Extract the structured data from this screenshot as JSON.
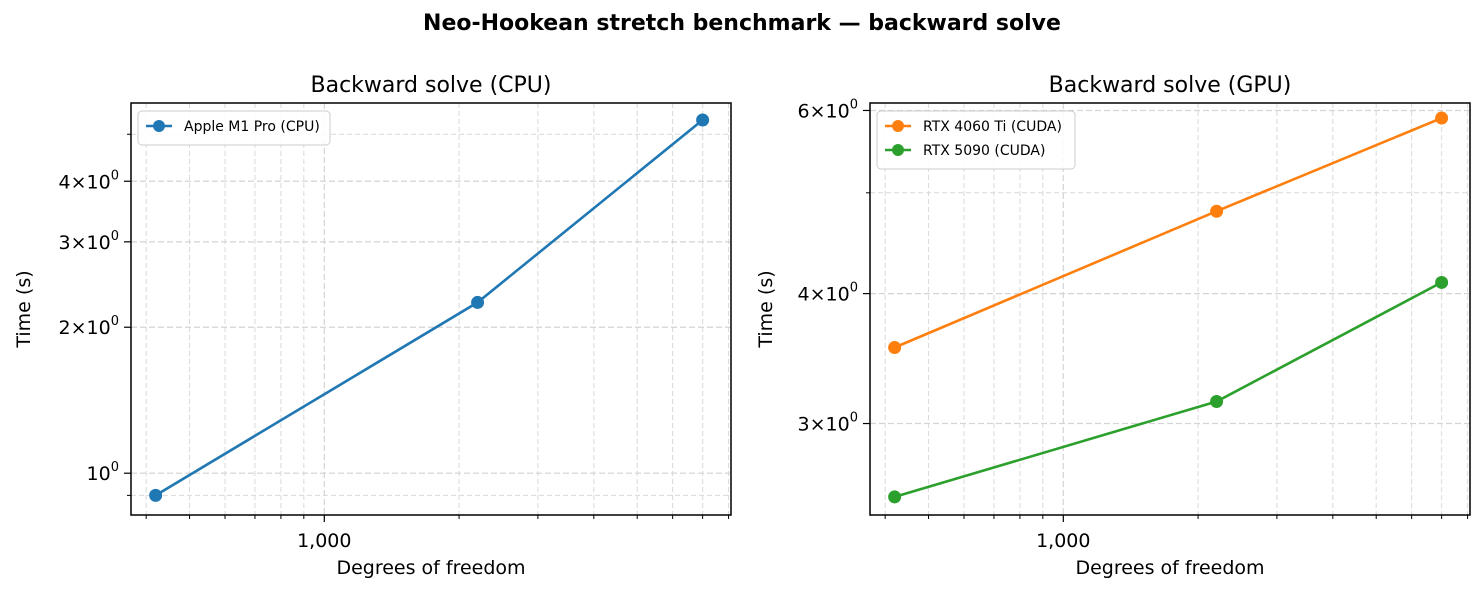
{
  "figure": {
    "title": "Neo-Hookean stretch benchmark — backward solve"
  },
  "chart_data": [
    {
      "type": "line",
      "title": "Backward solve (CPU)",
      "xlabel": "Degrees of freedom",
      "ylabel": "Time (s)",
      "xscale": "log",
      "yscale": "log",
      "grid": true,
      "legend_position": "top-left",
      "x_ticks": [
        {
          "value": 1000,
          "label": "1,000"
        }
      ],
      "y_ticks": [
        {
          "value": 1,
          "base": "10",
          "exp": "0"
        },
        {
          "value": 2,
          "base": "2×10",
          "exp": "0"
        },
        {
          "value": 3,
          "base": "3×10",
          "exp": "0"
        },
        {
          "value": 4,
          "base": "4×10",
          "exp": "0"
        }
      ],
      "xlim": [
        370,
        8100
      ],
      "ylim": [
        0.82,
        5.8
      ],
      "series": [
        {
          "name": "Apple M1 Pro (CPU)",
          "color": "#1f77b4",
          "x": [
            420,
            2200,
            7000
          ],
          "y": [
            0.9,
            2.25,
            5.35
          ]
        }
      ]
    },
    {
      "type": "line",
      "title": "Backward solve (GPU)",
      "xlabel": "Degrees of freedom",
      "ylabel": "Time (s)",
      "xscale": "log",
      "yscale": "log",
      "grid": true,
      "legend_position": "top-left",
      "x_ticks": [
        {
          "value": 1000,
          "label": "1,000"
        }
      ],
      "y_ticks": [
        {
          "value": 3,
          "base": "3×10",
          "exp": "0"
        },
        {
          "value": 4,
          "base": "4×10",
          "exp": "0"
        },
        {
          "value": 6,
          "base": "6×10",
          "exp": "0"
        }
      ],
      "xlim": [
        370,
        8100
      ],
      "ylim": [
        2.45,
        6.1
      ],
      "series": [
        {
          "name": "RTX 4060 Ti (CUDA)",
          "color": "#ff7f0e",
          "x": [
            420,
            2200,
            7000
          ],
          "y": [
            3.55,
            4.8,
            5.9
          ]
        },
        {
          "name": "RTX 5090 (CUDA)",
          "color": "#2ca02c",
          "x": [
            420,
            2200,
            7000
          ],
          "y": [
            2.55,
            3.15,
            4.1
          ]
        }
      ]
    }
  ]
}
